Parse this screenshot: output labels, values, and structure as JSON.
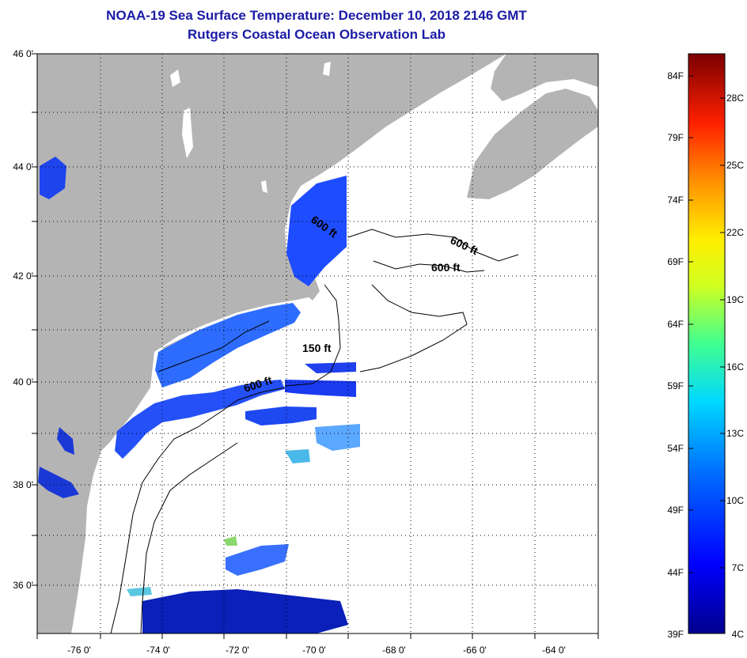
{
  "title_line1": "NOAA-19 Sea Surface Temperature:  December 10, 2018 2146 GMT",
  "title_line2": "Rutgers Coastal Ocean Observation Lab",
  "lat_labels": [
    "46 0'",
    "44 0'",
    "42 0'",
    "40 0'",
    "38 0'",
    "36 0'"
  ],
  "lon_labels": [
    "-76 0'",
    "-74 0'",
    "-72 0'",
    "-70 0'",
    "-68 0'",
    "-66 0'",
    "-64 0'"
  ],
  "contour_labels": [
    "600 ft",
    "600 ft",
    "600 ft",
    "150 ft",
    "600 ft"
  ],
  "colorbar": {
    "fahrenheit": [
      "84F",
      "79F",
      "74F",
      "69F",
      "64F",
      "59F",
      "54F",
      "49F",
      "44F",
      "39F"
    ],
    "celsius": [
      "28C",
      "25C",
      "22C",
      "19C",
      "16C",
      "13C",
      "10C",
      "7C",
      "4C"
    ]
  },
  "colors": {
    "land": "#b4b4b4",
    "ocean": "#ffffff",
    "title": "#1a1aa6"
  }
}
